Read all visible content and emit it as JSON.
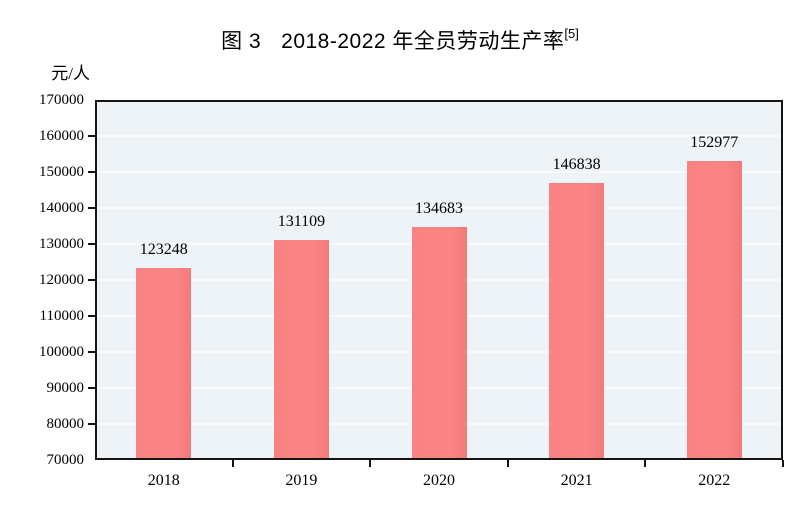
{
  "title": {
    "prefix": "图 3",
    "main": "2018-2022 年全员劳动生产率",
    "superscript": "[5]"
  },
  "chart_data": {
    "type": "bar",
    "title": "图 3 2018-2022 年全员劳动生产率[5]",
    "ylabel": "元/人",
    "xlabel": "",
    "categories": [
      "2018",
      "2019",
      "2020",
      "2021",
      "2022"
    ],
    "values": [
      123248,
      131109,
      134683,
      146838,
      152977
    ],
    "value_labels": [
      "123248",
      "131109",
      "134683",
      "146838",
      "152977"
    ],
    "ylim": [
      70000,
      170000
    ],
    "ytick_step": 10000,
    "yticks": [
      170000,
      160000,
      150000,
      140000,
      130000,
      120000,
      110000,
      100000,
      90000,
      80000,
      70000
    ],
    "grid": true,
    "legend": "none",
    "colors": {
      "bar": "#fb8282",
      "plot_background": "#edf3f6",
      "gridline": "#f8fbfd",
      "axis": "#141414",
      "text": "#000000"
    }
  }
}
